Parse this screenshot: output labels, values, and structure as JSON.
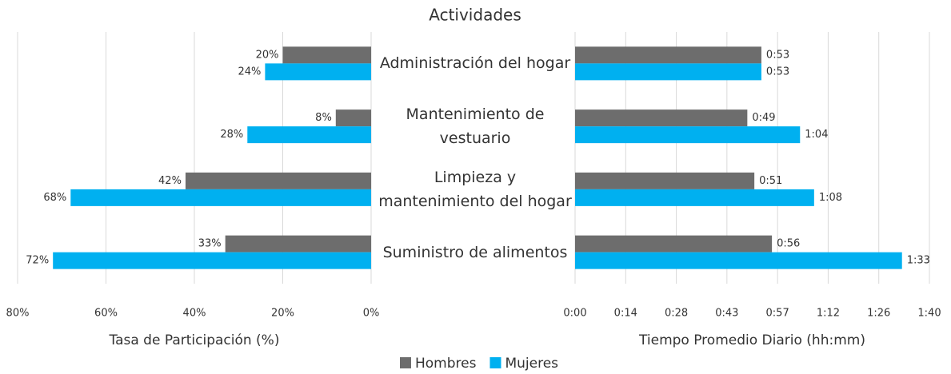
{
  "chart_data": [
    {
      "type": "hbar-reversed",
      "title": "Actividades",
      "categories": [
        "Administración del hogar",
        "Mantenimiento de vestuario",
        "Limpieza y mantenimiento del hogar",
        "Suministro de alimentos"
      ],
      "xlabel": "Tasa de Participación (%)",
      "xlim": [
        0,
        80
      ],
      "xticks": [
        {
          "value": 80,
          "label": "80%"
        },
        {
          "value": 60,
          "label": "60%"
        },
        {
          "value": 40,
          "label": "40%"
        },
        {
          "value": 20,
          "label": "20%"
        },
        {
          "value": 0,
          "label": "0%"
        }
      ],
      "grid": true,
      "series": [
        {
          "name": "Hombres",
          "color": "#6d6d6d",
          "values": [
            20,
            8,
            42,
            33
          ],
          "value_labels": [
            "20%",
            "8%",
            "42%",
            "33%"
          ]
        },
        {
          "name": "Mujeres",
          "color": "#00b0f0",
          "values": [
            24,
            28,
            68,
            72
          ],
          "value_labels": [
            "24%",
            "28%",
            "68%",
            "72%"
          ]
        }
      ]
    },
    {
      "type": "hbar",
      "xlabel": "Tiempo Promedio Diario (hh:mm)",
      "xlim": [
        0,
        100.8
      ],
      "xticks": [
        {
          "value": 0,
          "label": "0:00"
        },
        {
          "value": 14.4,
          "label": "0:14"
        },
        {
          "value": 28.8,
          "label": "0:28"
        },
        {
          "value": 43.2,
          "label": "0:43"
        },
        {
          "value": 57.6,
          "label": "0:57"
        },
        {
          "value": 72,
          "label": "1:12"
        },
        {
          "value": 86.4,
          "label": "1:26"
        },
        {
          "value": 100.8,
          "label": "1:40"
        }
      ],
      "grid": true,
      "series": [
        {
          "name": "Hombres",
          "color": "#6d6d6d",
          "values": [
            53,
            49,
            51,
            56
          ],
          "value_labels": [
            "0:53",
            "0:49",
            "0:51",
            "0:56"
          ]
        },
        {
          "name": "Mujeres",
          "color": "#00b0f0",
          "values": [
            53,
            64,
            68,
            93
          ],
          "value_labels": [
            "0:53",
            "1:04",
            "1:08",
            "1:33"
          ]
        }
      ]
    }
  ]
}
